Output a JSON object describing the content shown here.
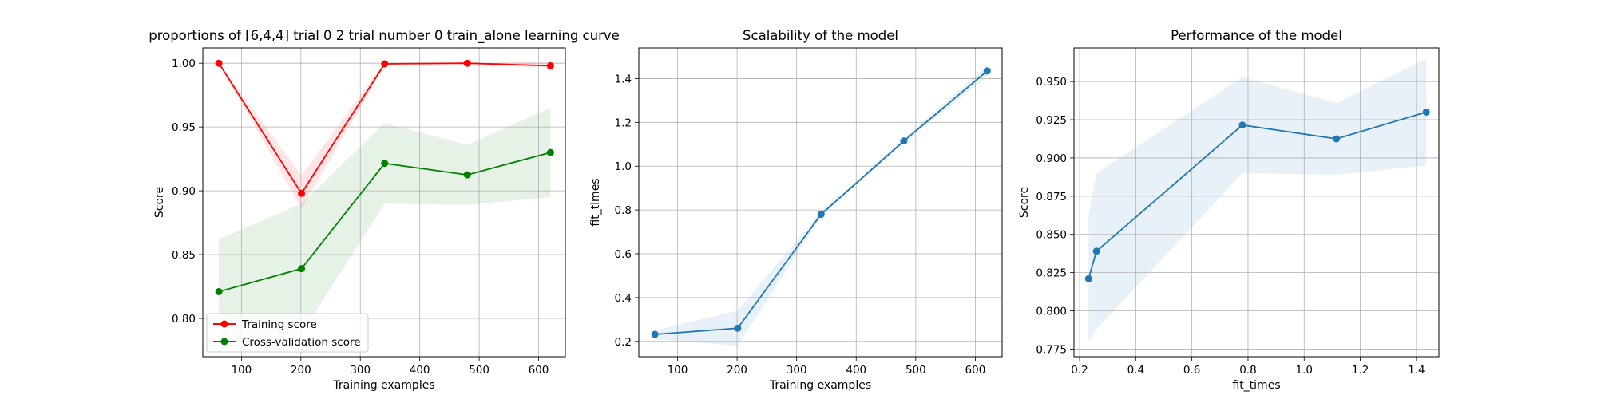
{
  "chart_data": [
    {
      "type": "line",
      "title": "proportions of [6,4,4] trial 0 2 trial number 0 train_alone learning curve",
      "xlabel": "Training examples",
      "ylabel": "Score",
      "xlim": [
        35,
        645
      ],
      "ylim": [
        0.77,
        1.012
      ],
      "xticks": [
        100,
        200,
        300,
        400,
        500,
        600
      ],
      "yticks": [
        0.8,
        0.85,
        0.9,
        0.95,
        1.0
      ],
      "ytick_labels": [
        "0.80",
        "0.85",
        "0.90",
        "0.95",
        "1.00"
      ],
      "grid": true,
      "legend": "lower left",
      "x": [
        62,
        201,
        341,
        480,
        620
      ],
      "series": [
        {
          "name": "Training score",
          "color": "#ff0000",
          "values": [
            1.0,
            0.898,
            0.9995,
            1.0,
            0.998
          ],
          "band_lower": [
            1.0,
            0.886,
            0.998,
            1.0,
            0.996
          ],
          "band_upper": [
            1.0,
            0.912,
            1.001,
            1.0,
            1.001
          ]
        },
        {
          "name": "Cross-validation score",
          "color": "#008000",
          "values": [
            0.821,
            0.839,
            0.9215,
            0.9125,
            0.93
          ],
          "band_lower": [
            0.78,
            0.788,
            0.89,
            0.889,
            0.895
          ],
          "band_upper": [
            0.862,
            0.89,
            0.953,
            0.936,
            0.965
          ]
        }
      ]
    },
    {
      "type": "line",
      "title": "Scalability of the model",
      "xlabel": "Training examples",
      "ylabel": "fit_times",
      "xlim": [
        35,
        645
      ],
      "ylim": [
        0.13,
        1.54
      ],
      "xticks": [
        100,
        200,
        300,
        400,
        500,
        600
      ],
      "yticks": [
        0.2,
        0.4,
        0.6,
        0.8,
        1.0,
        1.2,
        1.4
      ],
      "ytick_labels": [
        "0.2",
        "0.4",
        "0.6",
        "0.8",
        "1.0",
        "1.2",
        "1.4"
      ],
      "grid": true,
      "x": [
        62,
        201,
        341,
        480,
        620
      ],
      "series": [
        {
          "color": "#1f77b4",
          "values": [
            0.232,
            0.26,
            0.78,
            1.115,
            1.435
          ],
          "band_lower": [
            0.21,
            0.18,
            0.77,
            1.105,
            1.41
          ],
          "band_upper": [
            0.25,
            0.34,
            0.79,
            1.125,
            1.46
          ]
        }
      ]
    },
    {
      "type": "line",
      "title": "Performance of the model",
      "xlabel": "fit_times",
      "ylabel": "Score",
      "xlim": [
        0.18,
        1.48
      ],
      "ylim": [
        0.77,
        0.972
      ],
      "xticks": [
        0.2,
        0.4,
        0.6,
        0.8,
        1.0,
        1.2,
        1.4
      ],
      "xtick_labels": [
        "0.2",
        "0.4",
        "0.6",
        "0.8",
        "1.0",
        "1.2",
        "1.4"
      ],
      "yticks": [
        0.775,
        0.8,
        0.825,
        0.85,
        0.875,
        0.9,
        0.925,
        0.95
      ],
      "ytick_labels": [
        "0.775",
        "0.800",
        "0.825",
        "0.850",
        "0.875",
        "0.900",
        "0.925",
        "0.950"
      ],
      "grid": true,
      "series": [
        {
          "color": "#1f77b4",
          "x": [
            0.232,
            0.26,
            0.78,
            1.115,
            1.435
          ],
          "values": [
            0.821,
            0.839,
            0.9215,
            0.9125,
            0.93
          ],
          "band_lower": [
            0.78,
            0.788,
            0.89,
            0.889,
            0.895
          ],
          "band_upper": [
            0.862,
            0.89,
            0.953,
            0.936,
            0.965
          ]
        }
      ]
    }
  ]
}
